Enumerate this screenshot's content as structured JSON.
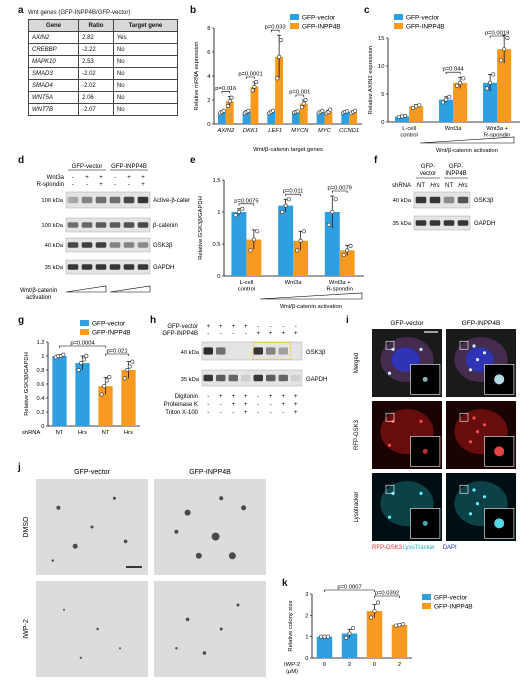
{
  "panels": {
    "a": "a",
    "b": "b",
    "c": "c",
    "d": "d",
    "e": "e",
    "f": "f",
    "g": "g",
    "h": "h",
    "i": "i",
    "j": "j",
    "k": "k"
  },
  "legend": {
    "vector": "GFP-vector",
    "inpp4b": "GFP-INPP4B"
  },
  "colors": {
    "vector": "#2f9fe0",
    "inpp4b": "#f79a1f",
    "point": "#ffffff"
  },
  "panel_a": {
    "title": "Wnt genes (GFP-INPP4B/GFP-vector)",
    "headers": [
      "Gene",
      "Ratio",
      "Target gene"
    ],
    "rows": [
      [
        "AXIN2",
        "2.82",
        "Yes"
      ],
      [
        "CREBBP",
        "-2.22",
        "No"
      ],
      [
        "MAPK10",
        "2.53",
        "No"
      ],
      [
        "SMAD3",
        "-2.02",
        "No"
      ],
      [
        "SMAD4",
        "-2.02",
        "No"
      ],
      [
        "WNT5A",
        "2.06",
        "No"
      ],
      [
        "WNT7B",
        "-2.07",
        "No"
      ]
    ]
  },
  "panel_d": {
    "cols": [
      "GFP-vector",
      "GFP-INPP4B"
    ],
    "wnt3a_label": "Wnt3a",
    "rspondin_label": "R-spondin",
    "wnt3a": [
      "-",
      "+",
      "+",
      "-",
      "+",
      "+"
    ],
    "rspondin": [
      "-",
      "-",
      "+",
      "-",
      "-",
      "+"
    ],
    "bands": [
      "Active-β-catenin",
      "β-catenin",
      "GSK3β",
      "GAPDH"
    ],
    "kda": [
      "100 kDa",
      "100 kDa",
      "40 kDa",
      "35 kDa"
    ],
    "activation": "Wnt/β-catenin activation"
  },
  "panel_f": {
    "cols": [
      "GFP-vector",
      "GFP-INPP4B"
    ],
    "shrna_label": "shRNA",
    "shrna": [
      "NT",
      "Hrs",
      "NT",
      "Hrs"
    ],
    "bands": [
      "GSK3β",
      "GAPDH"
    ],
    "kda": [
      "40 kDa",
      "35 kDa"
    ]
  },
  "panel_h": {
    "rows": [
      {
        "label": "GFP-vector",
        "vals": [
          "+",
          "+",
          "+",
          "+",
          "-",
          "-",
          "-",
          "-"
        ]
      },
      {
        "label": "GFP-INPP4B",
        "vals": [
          "-",
          "-",
          "-",
          "-",
          "+",
          "+",
          "+",
          "+"
        ]
      },
      {
        "label": "Digitonin",
        "vals": [
          "-",
          "+",
          "+",
          "+",
          "-",
          "+",
          "+",
          "+"
        ]
      },
      {
        "label": "Proteinase K",
        "vals": [
          "-",
          "-",
          "+",
          "+",
          "-",
          "-",
          "+",
          "+"
        ]
      },
      {
        "label": "Triton X-100",
        "vals": [
          "-",
          "-",
          "-",
          "+",
          "-",
          "-",
          "-",
          "+"
        ]
      }
    ],
    "bands": [
      "GSK3β",
      "GAPDH"
    ],
    "kda": [
      "40 kDa",
      "35 kDa"
    ]
  },
  "panel_i": {
    "cols": [
      "GFP-vector",
      "GFP-INPP4B"
    ],
    "rows": [
      "Merged",
      "RFP-GSK3",
      "Lysotracker"
    ],
    "legend": [
      "RFP-GSK3",
      "LysoTracker",
      "DAPI"
    ]
  },
  "panel_j": {
    "cols": [
      "GFP-vector",
      "GFP-INPP4B"
    ],
    "rows": [
      "DMSO",
      "IWP-2"
    ]
  },
  "chart_data": [
    {
      "id": "b",
      "type": "bar",
      "ylabel": "Relative mRNA expression",
      "xlabel": "Wnt/β-catenin target genes",
      "categories": [
        "AXIN2",
        "DKK1",
        "LEF1",
        "MYCN",
        "MYC",
        "CCND1"
      ],
      "ylim": [
        0,
        8
      ],
      "yticks": [
        0,
        2,
        4,
        6,
        8
      ],
      "series": [
        {
          "name": "GFP-vector",
          "values": [
            1,
            1,
            1,
            1,
            1,
            1
          ],
          "err": [
            0.1,
            0.1,
            0.1,
            0.1,
            0.1,
            0.1
          ],
          "points": [
            [
              0.9,
              1.0,
              1.1
            ],
            [
              0.9,
              1.0,
              1.1
            ],
            [
              0.9,
              1.0,
              1.1
            ],
            [
              0.95,
              1.0,
              1.05
            ],
            [
              0.9,
              1.0,
              1.1
            ],
            [
              0.95,
              1.0,
              1.05
            ]
          ]
        },
        {
          "name": "GFP-INPP4B",
          "values": [
            1.9,
            3.1,
            5.6,
            1.7,
            1.0,
            1.0
          ],
          "err": [
            0.4,
            0.4,
            1.8,
            0.3,
            0.15,
            0.1
          ],
          "points": [
            [
              1.5,
              1.9,
              2.2
            ],
            [
              2.8,
              3.1,
              3.5
            ],
            [
              3.8,
              5.6,
              7.0
            ],
            [
              1.4,
              1.7,
              2.0
            ],
            [
              0.9,
              1.0,
              1.2
            ],
            [
              0.9,
              1.0,
              1.1
            ]
          ]
        }
      ],
      "annotations": [
        {
          "text": "p=0.016",
          "i": 0
        },
        {
          "text": "p=0.0001",
          "i": 1
        },
        {
          "text": "p=0.033",
          "i": 2
        },
        {
          "text": "p=0.001",
          "i": 3
        }
      ]
    },
    {
      "id": "c",
      "type": "bar",
      "ylabel": "Relative AXIN2 expression",
      "xlabel": "Wnt/β-catenin activation",
      "categories": [
        "L-cell control",
        "Wnt3a",
        "Wnt3a + R-spondin"
      ],
      "ylim": [
        0,
        15
      ],
      "yticks": [
        0,
        5,
        10,
        15
      ],
      "series": [
        {
          "name": "GFP-vector",
          "values": [
            1,
            4,
            7
          ],
          "err": [
            0.2,
            0.5,
            1.5
          ],
          "points": [
            [
              0.9,
              1.0,
              1.1
            ],
            [
              3.5,
              4.0,
              4.5
            ],
            [
              6.0,
              7.0,
              8.5
            ]
          ]
        },
        {
          "name": "GFP-INPP4B",
          "values": [
            2.8,
            7,
            13
          ],
          "err": [
            0.3,
            1.0,
            2.5
          ],
          "points": [
            [
              2.5,
              2.8,
              3.0
            ],
            [
              6.5,
              7.0,
              7.8
            ],
            [
              11.0,
              13.0,
              15.0
            ]
          ]
        }
      ],
      "annotations": [
        {
          "text": "p=0.044",
          "i": 1
        },
        {
          "text": "p=0.0019",
          "i": 2
        }
      ]
    },
    {
      "id": "e",
      "type": "bar",
      "ylabel": "Relative GSK3β/GAPDH",
      "xlabel": "Wnt/β-catenin activation",
      "categories": [
        "L-cell control",
        "Wnt3a",
        "Wnt3a + R-spondin"
      ],
      "ylim": [
        0,
        1.5
      ],
      "yticks": [
        0,
        0.5,
        1.0,
        1.5
      ],
      "series": [
        {
          "name": "GFP-vector",
          "values": [
            1.0,
            1.1,
            1.0
          ],
          "err": [
            0.05,
            0.1,
            0.25
          ],
          "points": [
            [
              0.95,
              1.0,
              1.05
            ],
            [
              1.0,
              1.1,
              1.2
            ],
            [
              0.8,
              1.0,
              1.2
            ]
          ]
        },
        {
          "name": "GFP-INPP4B",
          "values": [
            0.57,
            0.55,
            0.4
          ],
          "err": [
            0.15,
            0.15,
            0.08
          ],
          "points": [
            [
              0.4,
              0.57,
              0.7
            ],
            [
              0.4,
              0.55,
              0.7
            ],
            [
              0.33,
              0.4,
              0.47
            ]
          ]
        }
      ],
      "annotations": [
        {
          "text": "p=0.0075",
          "i": 0
        },
        {
          "text": "p=0.011",
          "i": 1
        },
        {
          "text": "p=0.0079",
          "i": 2
        }
      ]
    },
    {
      "id": "g",
      "type": "bar",
      "ylabel": "Relative GSK3β/GAPDH",
      "xlabel": "",
      "shrna_label": "shRNA",
      "categories": [
        "NT",
        "Hrs",
        "NT",
        "Hrs"
      ],
      "ylim": [
        0,
        1.2
      ],
      "yticks": [
        0,
        0.2,
        0.4,
        0.6,
        0.8,
        1.0,
        1.2
      ],
      "values": [
        1.0,
        0.9,
        0.57,
        0.8
      ],
      "err": [
        0.02,
        0.1,
        0.12,
        0.12
      ],
      "groups": [
        "GFP-vector",
        "GFP-vector",
        "GFP-INPP4B",
        "GFP-INPP4B"
      ],
      "points": [
        [
          0.98,
          1.0,
          1.0,
          1.02
        ],
        [
          0.8,
          0.9,
          0.95,
          1.0
        ],
        [
          0.45,
          0.57,
          0.65,
          0.7
        ],
        [
          0.68,
          0.8,
          0.85,
          0.92
        ]
      ],
      "annotations": [
        {
          "text": "p=0.0004",
          "from": 0,
          "to": 2
        },
        {
          "text": "p=0.021",
          "from": 2,
          "to": 3
        }
      ]
    },
    {
      "id": "k",
      "type": "bar",
      "ylabel": "Relative colony size",
      "xlabel": "IWP-2 (μM)",
      "categories": [
        "0",
        "2",
        "0",
        "2"
      ],
      "ylim": [
        0,
        3
      ],
      "yticks": [
        0,
        1,
        2,
        3
      ],
      "values": [
        1.0,
        1.15,
        2.2,
        1.55
      ],
      "err": [
        0.02,
        0.2,
        0.3,
        0.05
      ],
      "groups": [
        "GFP-vector",
        "GFP-vector",
        "GFP-INPP4B",
        "GFP-INPP4B"
      ],
      "points": [
        [
          1.0,
          1.0,
          1.0
        ],
        [
          0.95,
          1.15,
          1.4
        ],
        [
          1.9,
          2.2,
          2.6
        ],
        [
          1.52,
          1.55,
          1.58
        ]
      ],
      "annotations": [
        {
          "text": "p=0.0007",
          "from": 0,
          "to": 2
        },
        {
          "text": "p=0.0392",
          "from": 2,
          "to": 3
        }
      ]
    }
  ]
}
